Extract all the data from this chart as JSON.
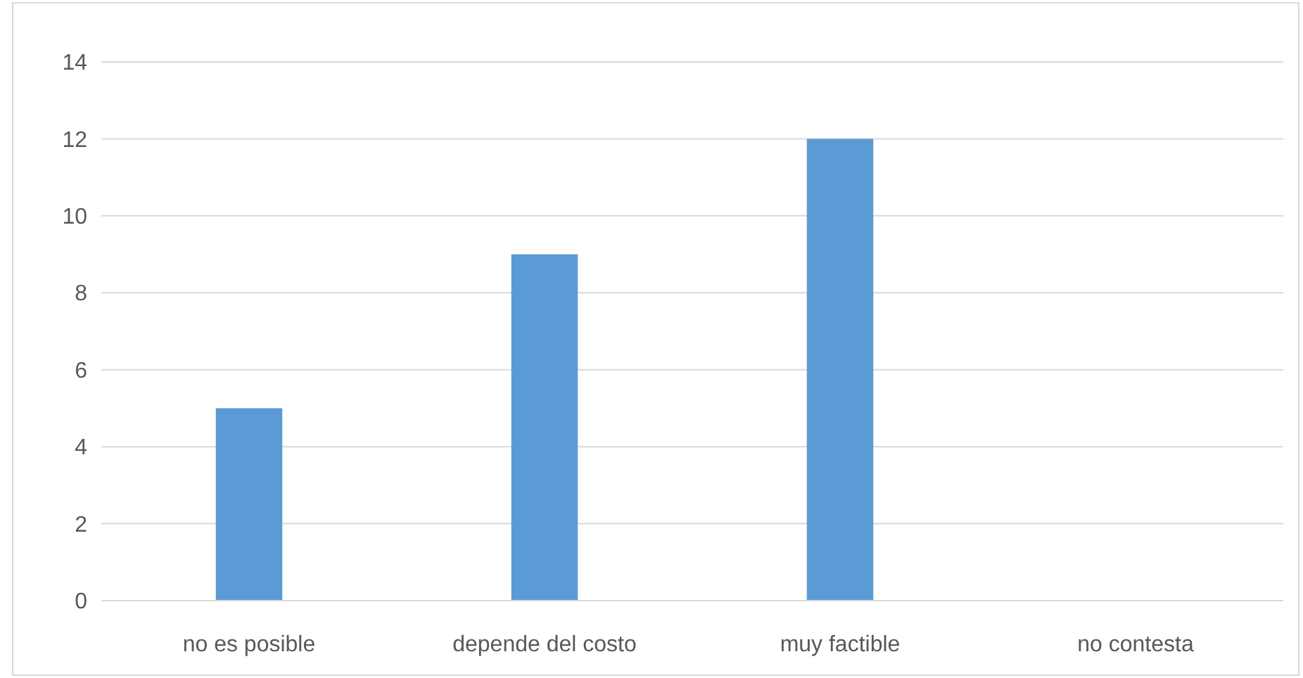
{
  "chart_data": {
    "type": "bar",
    "categories": [
      "no es posible",
      "depende del costo",
      "muy factible",
      "no contesta"
    ],
    "values": [
      5,
      9,
      12,
      0
    ],
    "color": "#5b9bd5",
    "ylim": [
      0,
      14
    ],
    "yticks": [
      0,
      2,
      4,
      6,
      8,
      10,
      12,
      14
    ],
    "grid": "y"
  }
}
